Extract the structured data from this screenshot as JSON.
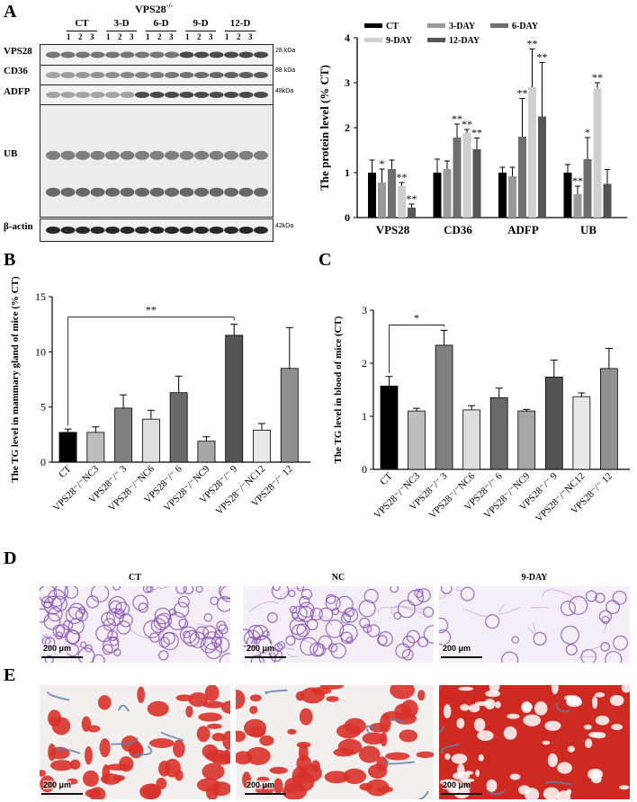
{
  "panel_labels": {
    "a": "A",
    "b": "B",
    "c": "C",
    "d": "D",
    "e": "E"
  },
  "blot": {
    "title": "VPS28",
    "title_sup": "-/-",
    "groups": [
      "CT",
      "3-D",
      "6-D",
      "9-D",
      "12-D"
    ],
    "lanes": [
      "1",
      "2",
      "3"
    ],
    "rows": [
      {
        "label": "VPS28",
        "kda": "28 kDa"
      },
      {
        "label": "CD36",
        "kda": "88 kDa"
      },
      {
        "label": "ADFP",
        "kda": "48kDa"
      },
      {
        "label": "UB",
        "kda": ""
      },
      {
        "label": "β-actin",
        "kda": "42kDa"
      }
    ]
  },
  "chart_data": [
    {
      "type": "bar",
      "id": "A",
      "ylabel": "The protein level (% CT)",
      "ylim": [
        0,
        4
      ],
      "yticks": [
        "0",
        "1",
        "2",
        "3",
        "4"
      ],
      "categories": [
        "VPS28",
        "CD36",
        "ADFP",
        "UB"
      ],
      "legend": [
        "CT",
        "3-DAY",
        "6-DAY",
        "9-DAY",
        "12-DAY"
      ],
      "legend_position": "top",
      "colors": {
        "CT": "#000000",
        "3-DAY": "#9a9a9a",
        "6-DAY": "#6f6f6f",
        "9-DAY": "#cfcfcf",
        "12-DAY": "#555555"
      },
      "series": [
        {
          "name": "CT",
          "values": [
            1.0,
            1.0,
            1.0,
            1.0
          ],
          "err": [
            0.28,
            0.3,
            0.12,
            0.18
          ],
          "sig": [
            "",
            "",
            "",
            ""
          ]
        },
        {
          "name": "3-DAY",
          "values": [
            0.78,
            1.08,
            0.92,
            0.52
          ],
          "err": [
            0.3,
            0.18,
            0.2,
            0.18
          ],
          "sig": [
            "*",
            "",
            "",
            "**"
          ]
        },
        {
          "name": "6-DAY",
          "values": [
            1.08,
            1.78,
            1.8,
            1.3
          ],
          "err": [
            0.2,
            0.3,
            0.85,
            0.48
          ],
          "sig": [
            "",
            "**",
            "**",
            "*"
          ]
        },
        {
          "name": "9-DAY",
          "values": [
            0.7,
            1.88,
            2.9,
            2.88
          ],
          "err": [
            0.08,
            0.08,
            0.85,
            0.12
          ],
          "sig": [
            "**",
            "**",
            "**",
            "**"
          ]
        },
        {
          "name": "12-DAY",
          "values": [
            0.22,
            1.52,
            2.25,
            0.75
          ],
          "err": [
            0.08,
            0.25,
            1.2,
            0.32
          ],
          "sig": [
            "**",
            "**",
            "**",
            ""
          ]
        }
      ]
    },
    {
      "type": "bar",
      "id": "B",
      "ylabel": "The TG level in mammary gland of mice (% CT)",
      "ylim": [
        0,
        15
      ],
      "yticks": [
        "0",
        "5",
        "10",
        "15"
      ],
      "categories": [
        "CT",
        "VPS28⁻/⁻NC3",
        "VPS28⁻/⁻ 3",
        "VPS28⁻/⁻NC6",
        "VPS28⁻/⁻ 6",
        "VPS28⁻/⁻NC9",
        "VPS28⁻/⁻ 9",
        "VPS28⁻/⁻NC12",
        "VPS28⁻/⁻ 12"
      ],
      "values": [
        2.7,
        2.7,
        4.9,
        3.9,
        6.3,
        1.9,
        11.5,
        2.9,
        8.5
      ],
      "err": [
        0.3,
        0.5,
        1.2,
        0.8,
        1.5,
        0.4,
        1.0,
        0.6,
        3.7
      ],
      "colors": [
        "#000000",
        "#bdbdbd",
        "#808080",
        "#dedede",
        "#6a6a6a",
        "#a6a6a6",
        "#555555",
        "#e8e8e8",
        "#909090"
      ],
      "significance": {
        "from": 0,
        "to": 6,
        "label": "**"
      }
    },
    {
      "type": "bar",
      "id": "C",
      "ylabel": "The TG level in blood of mice (CT)",
      "ylim": [
        0,
        3
      ],
      "yticks": [
        "0",
        "1",
        "2",
        "3"
      ],
      "categories": [
        "CT",
        "VPS28⁻/⁻NC3",
        "VPS28⁻/⁻ 3",
        "VPS28⁻/⁻NC6",
        "VPS28⁻/⁻ 6",
        "VPS28⁻/⁻NC9",
        "VPS28⁻/⁻ 9",
        "VPS28⁻/⁻NC12",
        "VPS28⁻/⁻ 12"
      ],
      "values": [
        1.57,
        1.1,
        2.34,
        1.12,
        1.35,
        1.1,
        1.74,
        1.37,
        1.9
      ],
      "err": [
        0.18,
        0.05,
        0.28,
        0.08,
        0.18,
        0.03,
        0.32,
        0.07,
        0.38
      ],
      "colors": [
        "#000000",
        "#bdbdbd",
        "#808080",
        "#dedede",
        "#6a6a6a",
        "#a6a6a6",
        "#555555",
        "#e8e8e8",
        "#909090"
      ],
      "significance": {
        "from": 0,
        "to": 2,
        "label": "*"
      }
    }
  ],
  "histology": {
    "titles": [
      "CT",
      "NC",
      "9-DAY"
    ],
    "scale_label": "200 μm"
  }
}
